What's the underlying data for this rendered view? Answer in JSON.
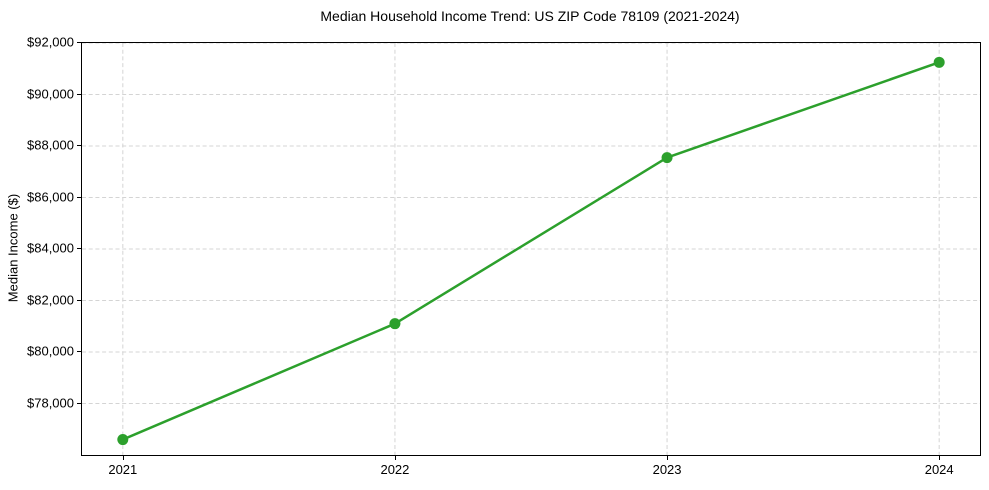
{
  "chart_data": {
    "type": "line",
    "title": "Median Household Income Trend: US ZIP Code 78109 (2021-2024)",
    "ylabel": "Median Income ($)",
    "categories": [
      "2021",
      "2022",
      "2023",
      "2024"
    ],
    "series": [
      {
        "name": "Median Household Income",
        "values": [
          76600,
          81100,
          87550,
          91250
        ],
        "color": "#2ca02c",
        "marker": "circle"
      }
    ],
    "ylim": [
      76000,
      92000
    ],
    "yticks": [
      78000,
      80000,
      82000,
      84000,
      86000,
      88000,
      90000,
      92000
    ],
    "ytick_labels": [
      "$78,000",
      "$80,000",
      "$82,000",
      "$84,000",
      "$86,000",
      "$88,000",
      "$90,000",
      "$92,000"
    ],
    "grid": {
      "visible": true,
      "style": "dashed",
      "color": "#d4d4d4"
    },
    "legend_position": "none",
    "colors": {
      "axis": "#000000",
      "text": "#000000",
      "background": "#ffffff"
    }
  }
}
